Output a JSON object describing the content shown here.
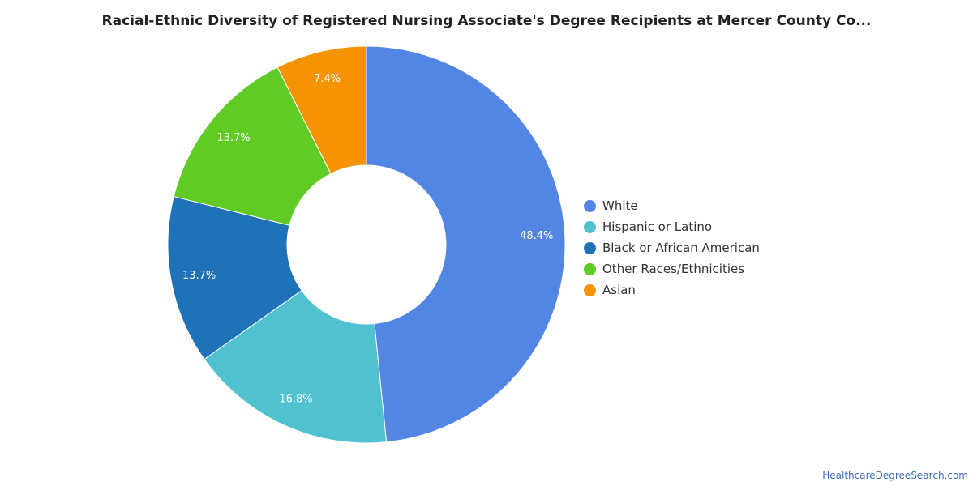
{
  "chart_data": {
    "type": "pie",
    "title": "Racial-Ethnic Diversity of Registered Nursing Associate's Degree Recipients at Mercer County Co...",
    "legend_position": "right",
    "slices": [
      {
        "label": "White",
        "value": 48.4,
        "display": "48.4%",
        "color": "#5386e4"
      },
      {
        "label": "Hispanic or Latino",
        "value": 16.8,
        "display": "16.8%",
        "color": "#4fc1cf"
      },
      {
        "label": "Black or African American",
        "value": 13.7,
        "display": "13.7%",
        "color": "#1f71b8"
      },
      {
        "label": "Other Races/Ethnicities",
        "value": 13.7,
        "display": "13.7%",
        "color": "#61cb26"
      },
      {
        "label": "Asian",
        "value": 7.4,
        "display": "7.4%",
        "color": "#f59300"
      }
    ]
  },
  "source": "HealthcareDegreeSearch.com"
}
